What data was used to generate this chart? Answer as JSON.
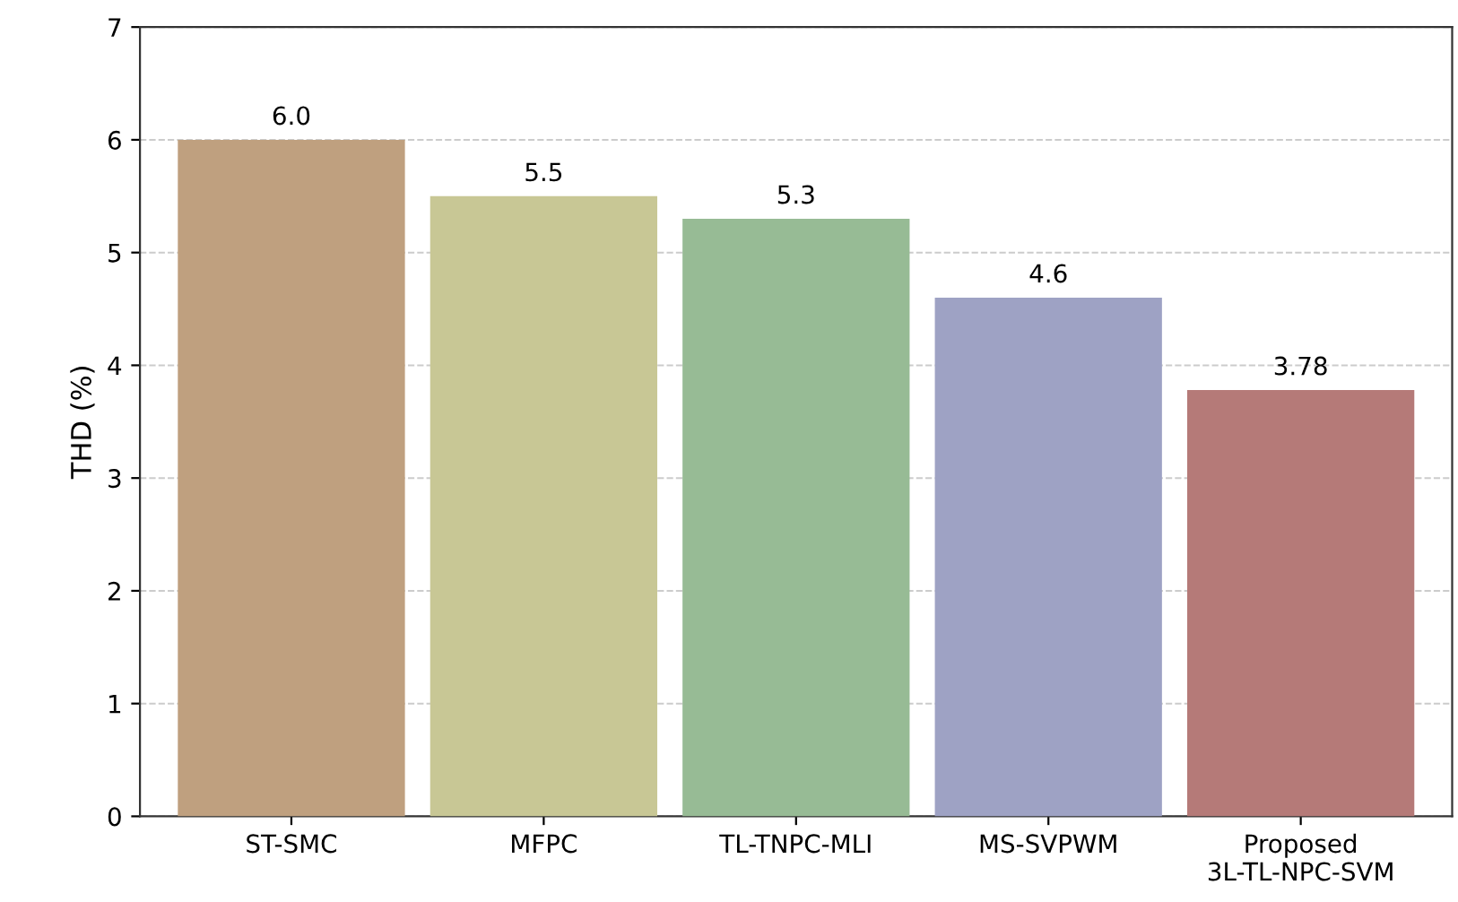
{
  "chart_data": {
    "type": "bar",
    "ylabel": "THD (%)",
    "categories": [
      "ST-SMC",
      "MFPC",
      "TL-TNPC-MLI",
      "MS-SVPWM",
      "Proposed\n3L-TL-NPC-SVM"
    ],
    "values": [
      6.0,
      5.5,
      5.3,
      4.6,
      3.78
    ],
    "value_labels": [
      "6.0",
      "5.5",
      "5.3",
      "4.6",
      "3.78"
    ],
    "colors": [
      "#bfa07f",
      "#c8c795",
      "#97bb95",
      "#9ea2c4",
      "#b57a78"
    ],
    "ylim": [
      0,
      7
    ],
    "yticks": [
      0,
      1,
      2,
      3,
      4,
      5,
      6,
      7
    ],
    "grid": "y"
  }
}
